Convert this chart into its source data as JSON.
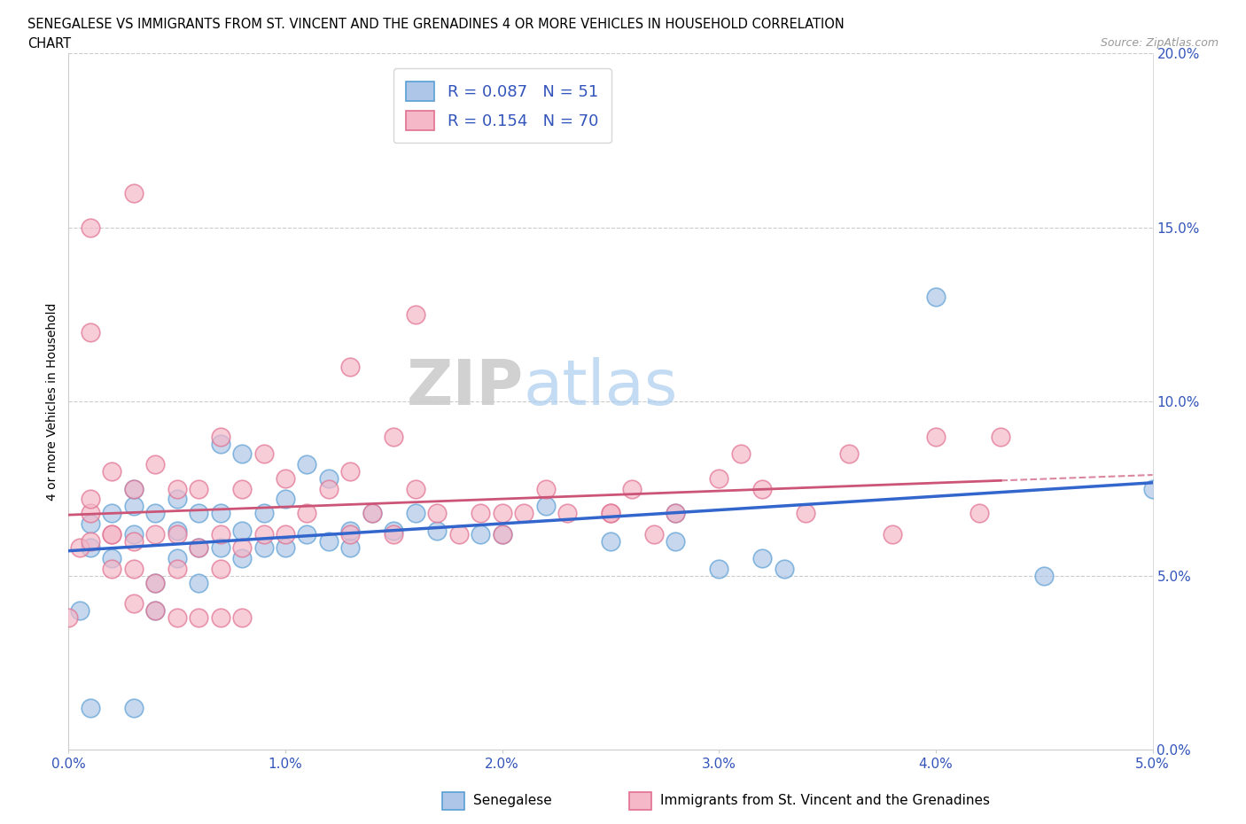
{
  "title_line1": "SENEGALESE VS IMMIGRANTS FROM ST. VINCENT AND THE GRENADINES 4 OR MORE VEHICLES IN HOUSEHOLD CORRELATION",
  "title_line2": "CHART",
  "source_text": "Source: ZipAtlas.com",
  "ylabel": "4 or more Vehicles in Household",
  "xlim": [
    0.0,
    0.05
  ],
  "ylim": [
    0.0,
    0.2
  ],
  "blue_color": "#aec6e8",
  "pink_color": "#f4b8c8",
  "blue_edge": "#5b9fd4",
  "pink_edge": "#e07090",
  "trend_blue": "#3366cc",
  "trend_pink": "#cc5577",
  "R_blue": 0.087,
  "N_blue": 51,
  "R_pink": 0.154,
  "N_pink": 70,
  "blue_scatter_x": [
    0.0005,
    0.001,
    0.001,
    0.002,
    0.002,
    0.003,
    0.003,
    0.003,
    0.004,
    0.004,
    0.005,
    0.005,
    0.005,
    0.006,
    0.006,
    0.006,
    0.007,
    0.007,
    0.007,
    0.008,
    0.008,
    0.008,
    0.009,
    0.009,
    0.01,
    0.01,
    0.011,
    0.011,
    0.012,
    0.012,
    0.013,
    0.013,
    0.014,
    0.015,
    0.016,
    0.017,
    0.019,
    0.02,
    0.022,
    0.025,
    0.028,
    0.03,
    0.032,
    0.04,
    0.045,
    0.001,
    0.003,
    0.004,
    0.033,
    0.028,
    0.05
  ],
  "blue_scatter_y": [
    0.04,
    0.058,
    0.065,
    0.055,
    0.068,
    0.062,
    0.07,
    0.075,
    0.048,
    0.068,
    0.055,
    0.063,
    0.072,
    0.048,
    0.058,
    0.068,
    0.058,
    0.068,
    0.088,
    0.055,
    0.063,
    0.085,
    0.058,
    0.068,
    0.058,
    0.072,
    0.062,
    0.082,
    0.06,
    0.078,
    0.058,
    0.063,
    0.068,
    0.063,
    0.068,
    0.063,
    0.062,
    0.062,
    0.07,
    0.06,
    0.06,
    0.052,
    0.055,
    0.13,
    0.05,
    0.012,
    0.012,
    0.04,
    0.052,
    0.068,
    0.075
  ],
  "pink_scatter_x": [
    0.0005,
    0.001,
    0.001,
    0.001,
    0.002,
    0.002,
    0.002,
    0.003,
    0.003,
    0.003,
    0.004,
    0.004,
    0.004,
    0.005,
    0.005,
    0.005,
    0.006,
    0.006,
    0.007,
    0.007,
    0.007,
    0.008,
    0.008,
    0.009,
    0.009,
    0.01,
    0.01,
    0.011,
    0.012,
    0.013,
    0.013,
    0.014,
    0.015,
    0.016,
    0.017,
    0.018,
    0.019,
    0.02,
    0.021,
    0.022,
    0.023,
    0.025,
    0.026,
    0.027,
    0.028,
    0.03,
    0.031,
    0.032,
    0.034,
    0.036,
    0.038,
    0.04,
    0.042,
    0.043,
    0.0,
    0.001,
    0.001,
    0.002,
    0.003,
    0.003,
    0.004,
    0.005,
    0.006,
    0.007,
    0.008,
    0.013,
    0.015,
    0.016,
    0.02,
    0.025
  ],
  "pink_scatter_y": [
    0.058,
    0.06,
    0.068,
    0.072,
    0.052,
    0.062,
    0.08,
    0.052,
    0.06,
    0.075,
    0.048,
    0.062,
    0.082,
    0.052,
    0.062,
    0.075,
    0.058,
    0.075,
    0.052,
    0.062,
    0.09,
    0.058,
    0.075,
    0.062,
    0.085,
    0.062,
    0.078,
    0.068,
    0.075,
    0.062,
    0.08,
    0.068,
    0.062,
    0.075,
    0.068,
    0.062,
    0.068,
    0.062,
    0.068,
    0.075,
    0.068,
    0.068,
    0.075,
    0.062,
    0.068,
    0.078,
    0.085,
    0.075,
    0.068,
    0.085,
    0.062,
    0.09,
    0.068,
    0.09,
    0.038,
    0.15,
    0.12,
    0.062,
    0.16,
    0.042,
    0.04,
    0.038,
    0.038,
    0.038,
    0.038,
    0.11,
    0.09,
    0.125,
    0.068,
    0.068
  ]
}
